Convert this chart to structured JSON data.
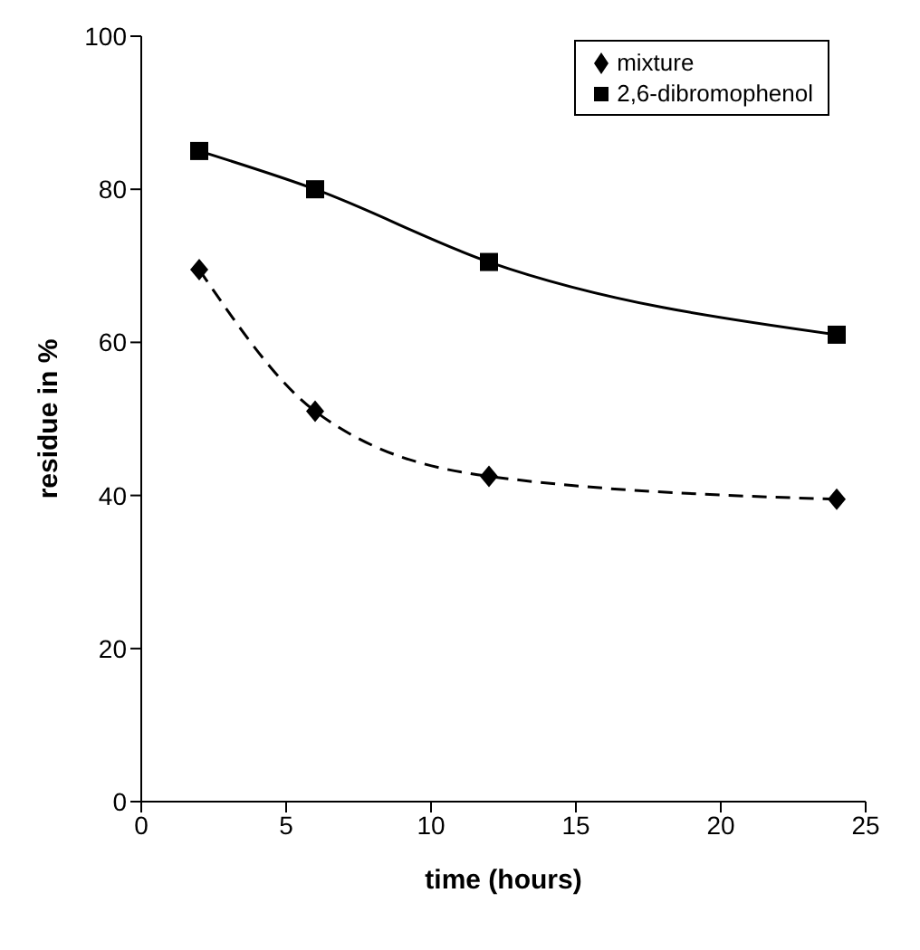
{
  "chart_data": {
    "type": "line",
    "xlabel": "time (hours)",
    "ylabel": "residue in %",
    "xlim": [
      0,
      25
    ],
    "xticks": [
      0,
      5,
      10,
      15,
      20,
      25
    ],
    "ylim": [
      0,
      100
    ],
    "yticks": [
      0,
      20,
      40,
      60,
      80,
      100
    ],
    "grid": false,
    "legend": "top right",
    "series": [
      {
        "name": "mixture",
        "color": "#000000",
        "marker": "diamond",
        "line_style": "dashed",
        "x": [
          2,
          6,
          12,
          24
        ],
        "values": [
          69.5,
          51,
          42.5,
          39.5
        ]
      },
      {
        "name": "2,6-dibromophenol",
        "color": "#000000",
        "marker": "square",
        "line_style": "solid",
        "x": [
          2,
          6,
          12,
          24
        ],
        "values": [
          85,
          80,
          70.5,
          61
        ]
      }
    ]
  }
}
